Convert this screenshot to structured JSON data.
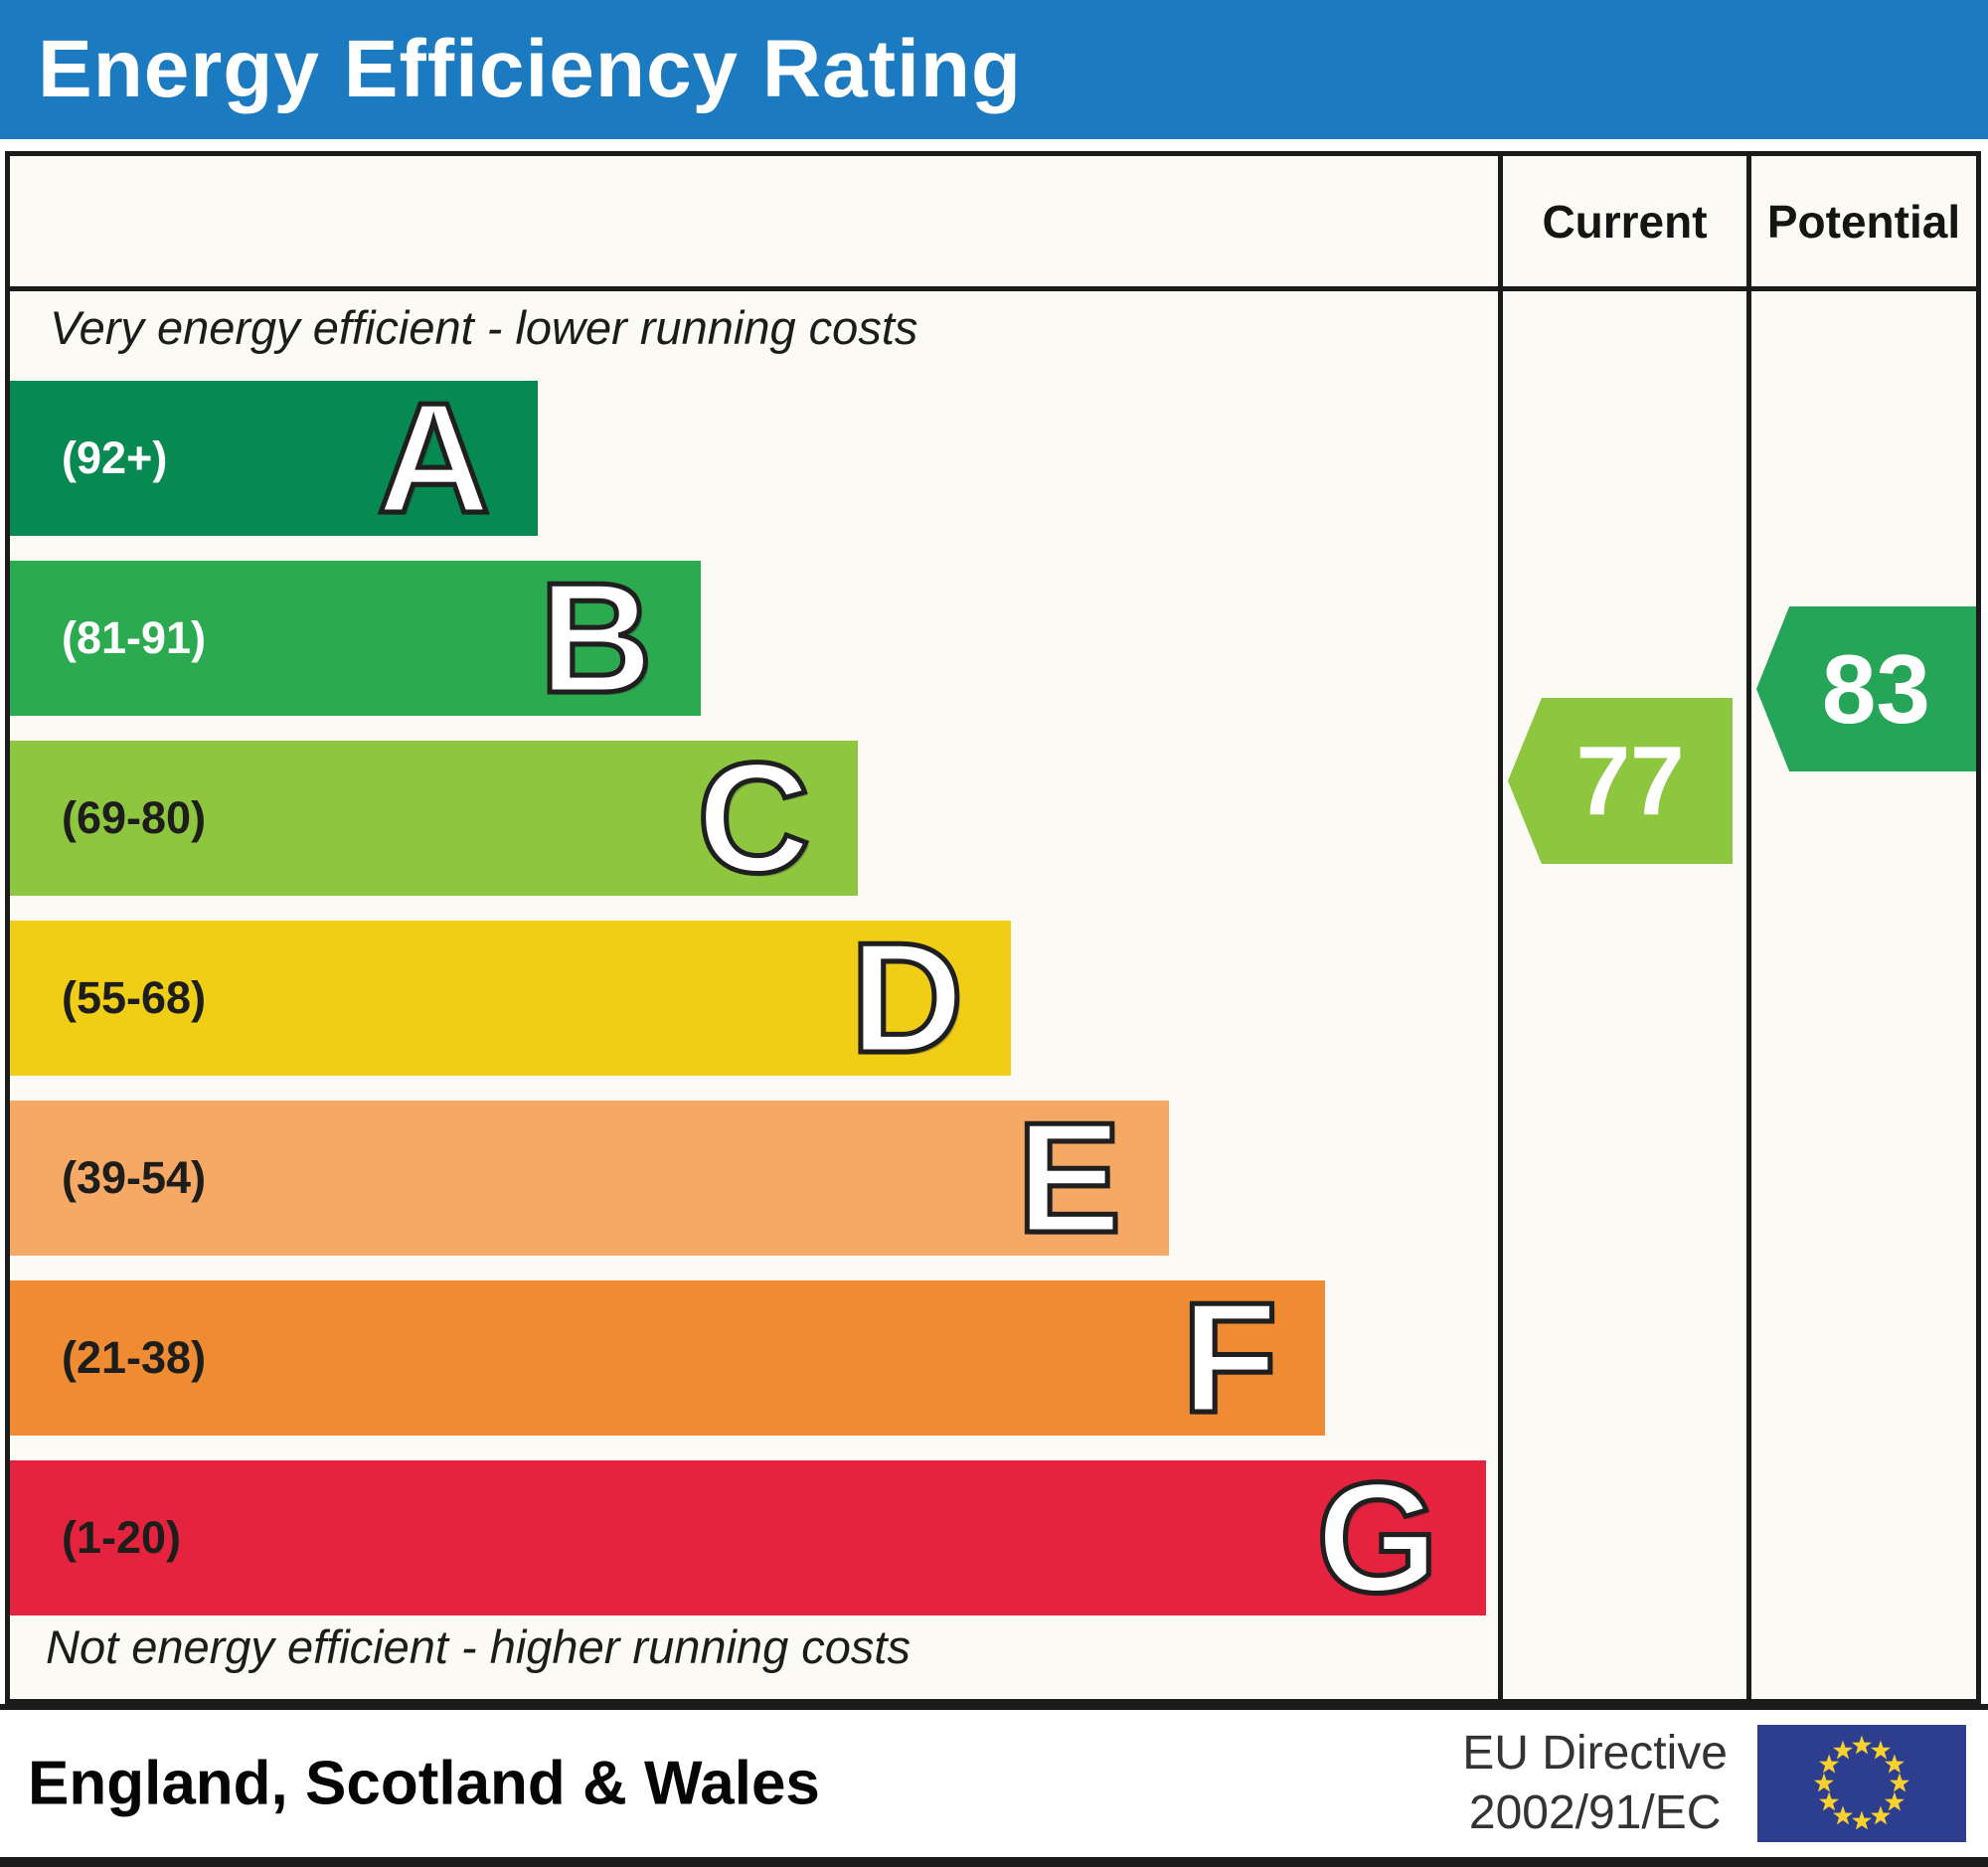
{
  "banner": {
    "title": "Energy Efficiency Rating"
  },
  "colors": {
    "banner_blue": "#1b7ac0",
    "border": "#1b1b1b",
    "chart_bg": "#fbfaf5",
    "current_pointer": "#8dc63f",
    "potential_pointer": "#26a457",
    "flag_blue": "#2e3e8e",
    "flag_star": "#f8d12e"
  },
  "table": {
    "current_header": "Current",
    "potential_header": "Potential",
    "top_caption": "Very energy efficient - lower running costs",
    "bottom_caption": "Not energy efficient - higher running costs"
  },
  "bands": [
    {
      "letter": "A",
      "range": "(92+)",
      "color": "#068a51",
      "range_color": "#ffffff",
      "width_pct": 35.5
    },
    {
      "letter": "B",
      "range": "(81-91)",
      "color": "#2caa4f",
      "range_color": "#ffffff",
      "width_pct": 46.4
    },
    {
      "letter": "C",
      "range": "(69-80)",
      "color": "#8ec63f",
      "range_color": "#1d1d1b",
      "width_pct": 57.0
    },
    {
      "letter": "D",
      "range": "(55-68)",
      "color": "#f1ce16",
      "range_color": "#1d1d1b",
      "width_pct": 67.3
    },
    {
      "letter": "E",
      "range": "(39-54)",
      "color": "#f6a964",
      "range_color": "#1d1d1b",
      "width_pct": 77.9
    },
    {
      "letter": "F",
      "range": "(21-38)",
      "color": "#ee8b33",
      "range_color": "#1d1d1b",
      "width_pct": 88.4
    },
    {
      "letter": "G",
      "range": "(1-20)",
      "color": "#e6233f",
      "range_color": "#1d1d1b",
      "width_pct": 99.2
    }
  ],
  "ratings": {
    "current": "77",
    "potential": "83"
  },
  "footer": {
    "region": "England, Scotland & Wales",
    "directive_line1": "EU Directive",
    "directive_line2": "2002/91/EC"
  },
  "chart_data": {
    "type": "bar",
    "title": "Energy Efficiency Rating",
    "categories": [
      "A (92+)",
      "B (81-91)",
      "C (69-80)",
      "D (55-68)",
      "E (39-54)",
      "F (21-38)",
      "G (1-20)"
    ],
    "band_colors": [
      "#068a51",
      "#2caa4f",
      "#8ec63f",
      "#f1ce16",
      "#f6a964",
      "#ee8b33",
      "#e6233f"
    ],
    "relative_bar_widths_pct": [
      35.5,
      46.4,
      57.0,
      67.3,
      77.9,
      88.4,
      99.2
    ],
    "current_rating": 77,
    "current_band": "C",
    "potential_rating": 83,
    "potential_band": "B",
    "column_headers": [
      "Current",
      "Potential"
    ],
    "top_caption": "Very energy efficient - lower running costs",
    "bottom_caption": "Not energy efficient - higher running costs",
    "region": "England, Scotland & Wales",
    "directive": "EU Directive 2002/91/EC",
    "legend_position": "none",
    "grid": false
  }
}
